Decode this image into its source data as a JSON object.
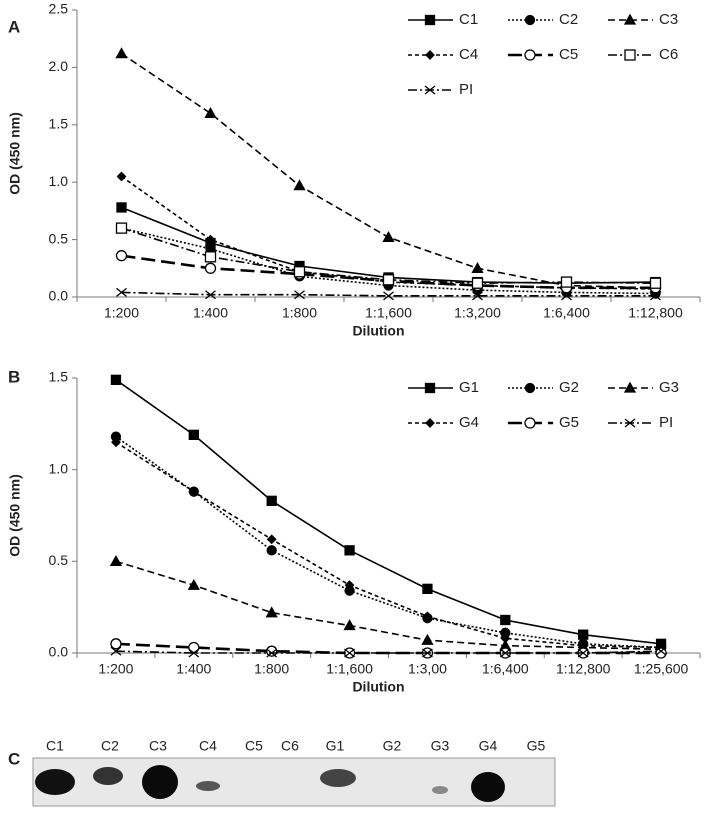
{
  "chart_data": [
    {
      "type": "line",
      "panel": "A",
      "x_label": "Dilution",
      "y_label": "OD (450 nm)",
      "legend": "upper right",
      "categories": [
        "1:200",
        "1:400",
        "1:800",
        "1:1,600",
        "1:3,200",
        "1:6,400",
        "1:12,800"
      ],
      "ylim": [
        0,
        2.5
      ],
      "yticks": [
        {
          "value": 0,
          "label": "0.0"
        },
        0.5,
        {
          "value": 1,
          "label": "1.0"
        },
        1.5,
        {
          "value": 2,
          "label": "2.0"
        },
        2.5
      ],
      "series": [
        {
          "name": "C1",
          "color": "#000000",
          "style": "solid",
          "marker": "square",
          "values": [
            0.78,
            0.47,
            0.27,
            0.17,
            0.13,
            0.12,
            0.13
          ]
        },
        {
          "name": "C2",
          "color": "#000000",
          "style": "dotted",
          "marker": "circle",
          "values": [
            0.6,
            0.42,
            0.18,
            0.1,
            0.06,
            0.04,
            0.03
          ]
        },
        {
          "name": "C3",
          "color": "#000000",
          "style": "dashed",
          "marker": "triangle",
          "values": [
            2.12,
            1.6,
            0.97,
            0.52,
            0.25,
            0.1,
            0.08
          ]
        },
        {
          "name": "C4",
          "color": "#000000",
          "style": "shortdash",
          "marker": "diamond",
          "values": [
            1.05,
            0.5,
            0.22,
            0.13,
            0.1,
            0.08,
            0.07
          ]
        },
        {
          "name": "C5",
          "color": "#000000",
          "style": "longdash",
          "marker": "open-circle",
          "values": [
            0.36,
            0.25,
            0.2,
            0.14,
            0.1,
            0.08,
            0.08
          ]
        },
        {
          "name": "C6",
          "color": "#000000",
          "style": "dashdot",
          "marker": "open-square",
          "values": [
            0.6,
            0.35,
            0.22,
            0.15,
            0.12,
            0.13,
            0.12
          ]
        },
        {
          "name": "PI",
          "color": "#000000",
          "style": "dashdot",
          "marker": "x",
          "values": [
            0.04,
            0.02,
            0.02,
            0.01,
            0.01,
            0.01,
            0.01
          ]
        }
      ]
    },
    {
      "type": "line",
      "panel": "B",
      "x_label": "Dilution",
      "y_label": "OD (450 nm)",
      "legend": "upper right",
      "categories": [
        "1:200",
        "1:400",
        "1:800",
        "1:1,600",
        "1:3,00",
        "1:6,400",
        "1:12,800",
        "1:25,600"
      ],
      "ylim": [
        0,
        1.5
      ],
      "yticks": [
        {
          "value": 0,
          "label": "0.0"
        },
        0.5,
        {
          "value": 1,
          "label": "1.0"
        },
        1.5
      ],
      "series": [
        {
          "name": "G1",
          "color": "#000000",
          "style": "solid",
          "marker": "square",
          "values": [
            1.49,
            1.19,
            0.83,
            0.56,
            0.35,
            0.18,
            0.1,
            0.05
          ]
        },
        {
          "name": "G2",
          "color": "#000000",
          "style": "dotted",
          "marker": "circle",
          "values": [
            1.18,
            0.88,
            0.56,
            0.34,
            0.19,
            0.11,
            0.05,
            0.03
          ]
        },
        {
          "name": "G3",
          "color": "#000000",
          "style": "dashed",
          "marker": "triangle",
          "values": [
            0.5,
            0.37,
            0.22,
            0.15,
            0.07,
            0.04,
            0.03,
            0.02
          ]
        },
        {
          "name": "G4",
          "color": "#000000",
          "style": "shortdash",
          "marker": "diamond",
          "values": [
            1.15,
            0.88,
            0.62,
            0.37,
            0.2,
            0.08,
            0.04,
            0.03
          ]
        },
        {
          "name": "G5",
          "color": "#000000",
          "style": "longdash",
          "marker": "open-circle",
          "values": [
            0.05,
            0.03,
            0.01,
            0,
            0,
            0,
            0,
            0
          ]
        },
        {
          "name": "PI",
          "color": "#000000",
          "style": "dashdot",
          "marker": "x",
          "values": [
            0.01,
            0,
            0,
            0,
            0,
            0,
            0,
            0.01
          ]
        }
      ]
    }
  ],
  "blot": {
    "panel": "C",
    "lanes": [
      "C1",
      "C2",
      "C3",
      "C4",
      "C5",
      "C6",
      "G1",
      "G2",
      "G3",
      "G4",
      "G5"
    ]
  }
}
